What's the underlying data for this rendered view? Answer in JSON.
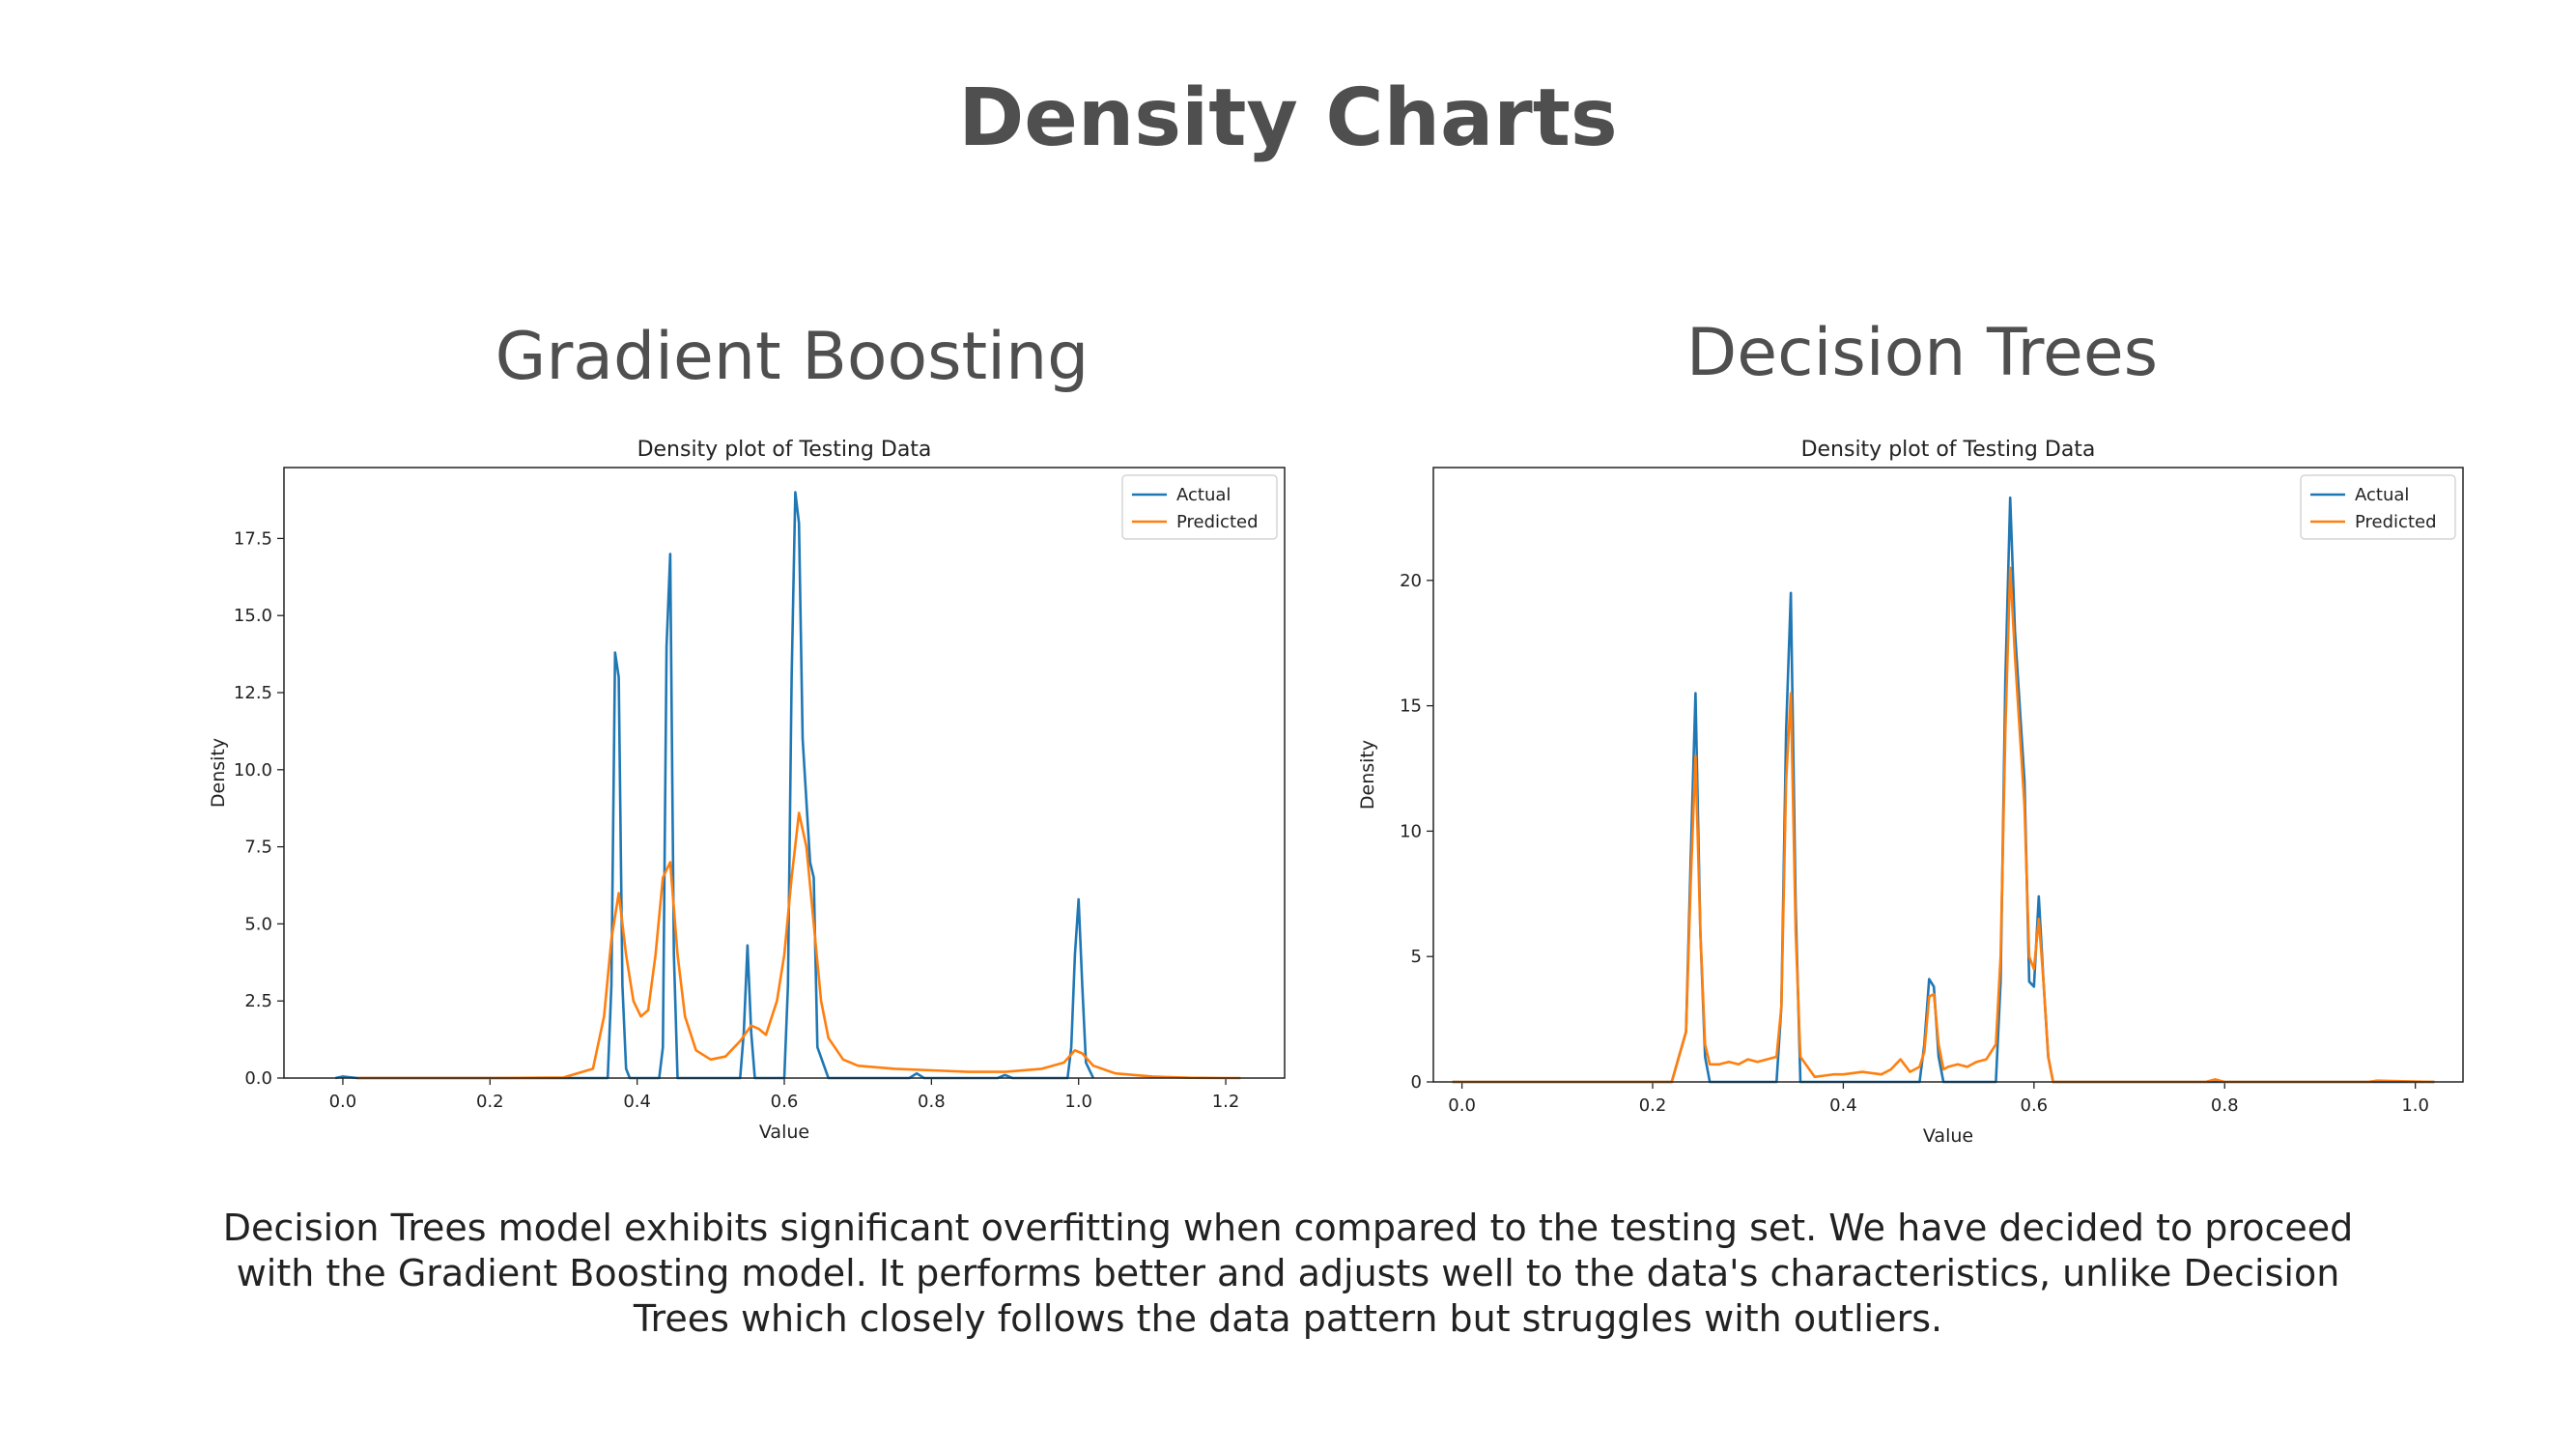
{
  "page": {
    "title": "Density Charts",
    "caption": "Decision Trees model exhibits significant overfitting when compared to the testing set. We have decided to proceed with the Gradient Boosting model. It performs better and adjusts well to the data's characteristics, unlike Decision Trees which closely follows the data pattern but struggles with outliers."
  },
  "panels": {
    "gb_heading": "Gradient Boosting",
    "dt_heading": "Decision Trees"
  },
  "colors": {
    "actual": "#1f77b4",
    "predicted": "#ff7f0e"
  },
  "chart_data": [
    {
      "type": "line",
      "title": "Density plot of Testing Data",
      "xlabel": "Value",
      "ylabel": "Density",
      "xlim": [
        -0.08,
        1.28
      ],
      "ylim": [
        0,
        19.8
      ],
      "xticks": [
        "0.0",
        "0.2",
        "0.4",
        "0.6",
        "0.8",
        "1.0",
        "1.2"
      ],
      "xtick_values": [
        0.0,
        0.2,
        0.4,
        0.6,
        0.8,
        1.0,
        1.2
      ],
      "yticks": [
        "0.0",
        "2.5",
        "5.0",
        "7.5",
        "10.0",
        "12.5",
        "15.0",
        "17.5"
      ],
      "ytick_values": [
        0,
        2.5,
        5,
        7.5,
        10,
        12.5,
        15,
        17.5
      ],
      "grid": false,
      "legend_position": "top-right",
      "series": [
        {
          "name": "Actual",
          "x": [
            -0.01,
            0.0,
            0.02,
            0.36,
            0.365,
            0.37,
            0.375,
            0.38,
            0.385,
            0.39,
            0.43,
            0.435,
            0.44,
            0.445,
            0.45,
            0.455,
            0.54,
            0.545,
            0.55,
            0.555,
            0.56,
            0.6,
            0.605,
            0.61,
            0.615,
            0.62,
            0.625,
            0.635,
            0.64,
            0.645,
            0.66,
            0.77,
            0.78,
            0.79,
            0.89,
            0.9,
            0.91,
            0.985,
            0.99,
            0.995,
            1.0,
            1.005,
            1.01,
            1.02
          ],
          "y": [
            0.0,
            0.05,
            0.0,
            0.0,
            3.0,
            13.8,
            13.0,
            3.0,
            0.3,
            0.0,
            0.0,
            1.0,
            14.0,
            17.0,
            4.0,
            0.0,
            0.0,
            1.5,
            4.3,
            1.5,
            0.0,
            0.0,
            3.0,
            13.0,
            19.0,
            18.0,
            11.0,
            7.0,
            6.5,
            1.0,
            0.0,
            0.0,
            0.15,
            0.0,
            0.0,
            0.1,
            0.0,
            0.0,
            1.0,
            4.0,
            5.8,
            3.0,
            0.5,
            0.0
          ]
        },
        {
          "name": "Predicted",
          "x": [
            0.02,
            0.1,
            0.2,
            0.3,
            0.34,
            0.355,
            0.365,
            0.375,
            0.385,
            0.395,
            0.405,
            0.415,
            0.425,
            0.435,
            0.445,
            0.455,
            0.465,
            0.48,
            0.5,
            0.52,
            0.54,
            0.555,
            0.565,
            0.575,
            0.59,
            0.6,
            0.61,
            0.62,
            0.63,
            0.64,
            0.65,
            0.66,
            0.68,
            0.7,
            0.75,
            0.8,
            0.85,
            0.9,
            0.95,
            0.98,
            0.995,
            1.005,
            1.02,
            1.05,
            1.1,
            1.15,
            1.2,
            1.22
          ],
          "y": [
            0.0,
            0.0,
            0.0,
            0.02,
            0.3,
            2.0,
            4.5,
            6.0,
            4.0,
            2.5,
            2.0,
            2.2,
            4.0,
            6.5,
            7.0,
            4.0,
            2.0,
            0.9,
            0.6,
            0.7,
            1.2,
            1.7,
            1.6,
            1.4,
            2.5,
            4.0,
            6.5,
            8.6,
            7.5,
            5.0,
            2.5,
            1.3,
            0.6,
            0.4,
            0.3,
            0.25,
            0.2,
            0.2,
            0.3,
            0.5,
            0.9,
            0.8,
            0.4,
            0.15,
            0.05,
            0.01,
            0.0,
            0.0
          ]
        }
      ]
    },
    {
      "type": "line",
      "title": "Density plot of Testing Data",
      "xlabel": "Value",
      "ylabel": "Density",
      "xlim": [
        -0.03,
        1.05
      ],
      "ylim": [
        0,
        24.5
      ],
      "xticks": [
        "0.0",
        "0.2",
        "0.4",
        "0.6",
        "0.8",
        "1.0"
      ],
      "xtick_values": [
        0.0,
        0.2,
        0.4,
        0.6,
        0.8,
        1.0
      ],
      "yticks": [
        "0",
        "5",
        "10",
        "15",
        "20"
      ],
      "ytick_values": [
        0,
        5,
        10,
        15,
        20
      ],
      "grid": false,
      "legend_position": "top-right",
      "series": [
        {
          "name": "Actual",
          "x": [
            -0.01,
            0.22,
            0.235,
            0.24,
            0.245,
            0.25,
            0.255,
            0.26,
            0.33,
            0.335,
            0.34,
            0.345,
            0.35,
            0.355,
            0.48,
            0.485,
            0.49,
            0.495,
            0.5,
            0.505,
            0.56,
            0.565,
            0.57,
            0.575,
            0.58,
            0.59,
            0.595,
            0.6,
            0.605,
            0.61,
            0.615,
            0.62,
            1.02
          ],
          "y": [
            0.0,
            0.0,
            2.0,
            9.0,
            15.5,
            6.0,
            1.0,
            0.0,
            0.0,
            3.0,
            14.0,
            19.5,
            7.0,
            0.0,
            0.0,
            1.5,
            4.1,
            3.8,
            1.0,
            0.0,
            0.0,
            4.0,
            16.0,
            23.3,
            18.0,
            12.0,
            4.0,
            3.8,
            7.4,
            4.0,
            1.0,
            0.0,
            0.0
          ]
        },
        {
          "name": "Predicted",
          "x": [
            -0.01,
            0.22,
            0.235,
            0.24,
            0.245,
            0.25,
            0.255,
            0.26,
            0.27,
            0.28,
            0.29,
            0.3,
            0.31,
            0.32,
            0.33,
            0.335,
            0.34,
            0.345,
            0.35,
            0.355,
            0.37,
            0.38,
            0.39,
            0.4,
            0.41,
            0.42,
            0.43,
            0.44,
            0.45,
            0.46,
            0.47,
            0.48,
            0.485,
            0.49,
            0.495,
            0.5,
            0.505,
            0.51,
            0.52,
            0.53,
            0.54,
            0.55,
            0.56,
            0.565,
            0.57,
            0.575,
            0.58,
            0.59,
            0.595,
            0.6,
            0.605,
            0.61,
            0.615,
            0.62,
            0.7,
            0.78,
            0.79,
            0.8,
            0.95,
            0.96,
            1.02
          ],
          "y": [
            0.0,
            0.0,
            2.0,
            8.0,
            13.0,
            6.0,
            1.5,
            0.7,
            0.7,
            0.8,
            0.7,
            0.9,
            0.8,
            0.9,
            1.0,
            3.0,
            12.0,
            15.5,
            6.0,
            1.0,
            0.2,
            0.25,
            0.3,
            0.3,
            0.35,
            0.4,
            0.35,
            0.3,
            0.5,
            0.9,
            0.4,
            0.6,
            1.2,
            3.4,
            3.5,
            1.5,
            0.5,
            0.6,
            0.7,
            0.6,
            0.8,
            0.9,
            1.5,
            5.0,
            14.0,
            20.5,
            17.0,
            11.0,
            5.0,
            4.5,
            6.5,
            4.0,
            1.0,
            0.0,
            0.0,
            0.0,
            0.1,
            0.0,
            0.0,
            0.05,
            0.0
          ]
        }
      ]
    }
  ]
}
